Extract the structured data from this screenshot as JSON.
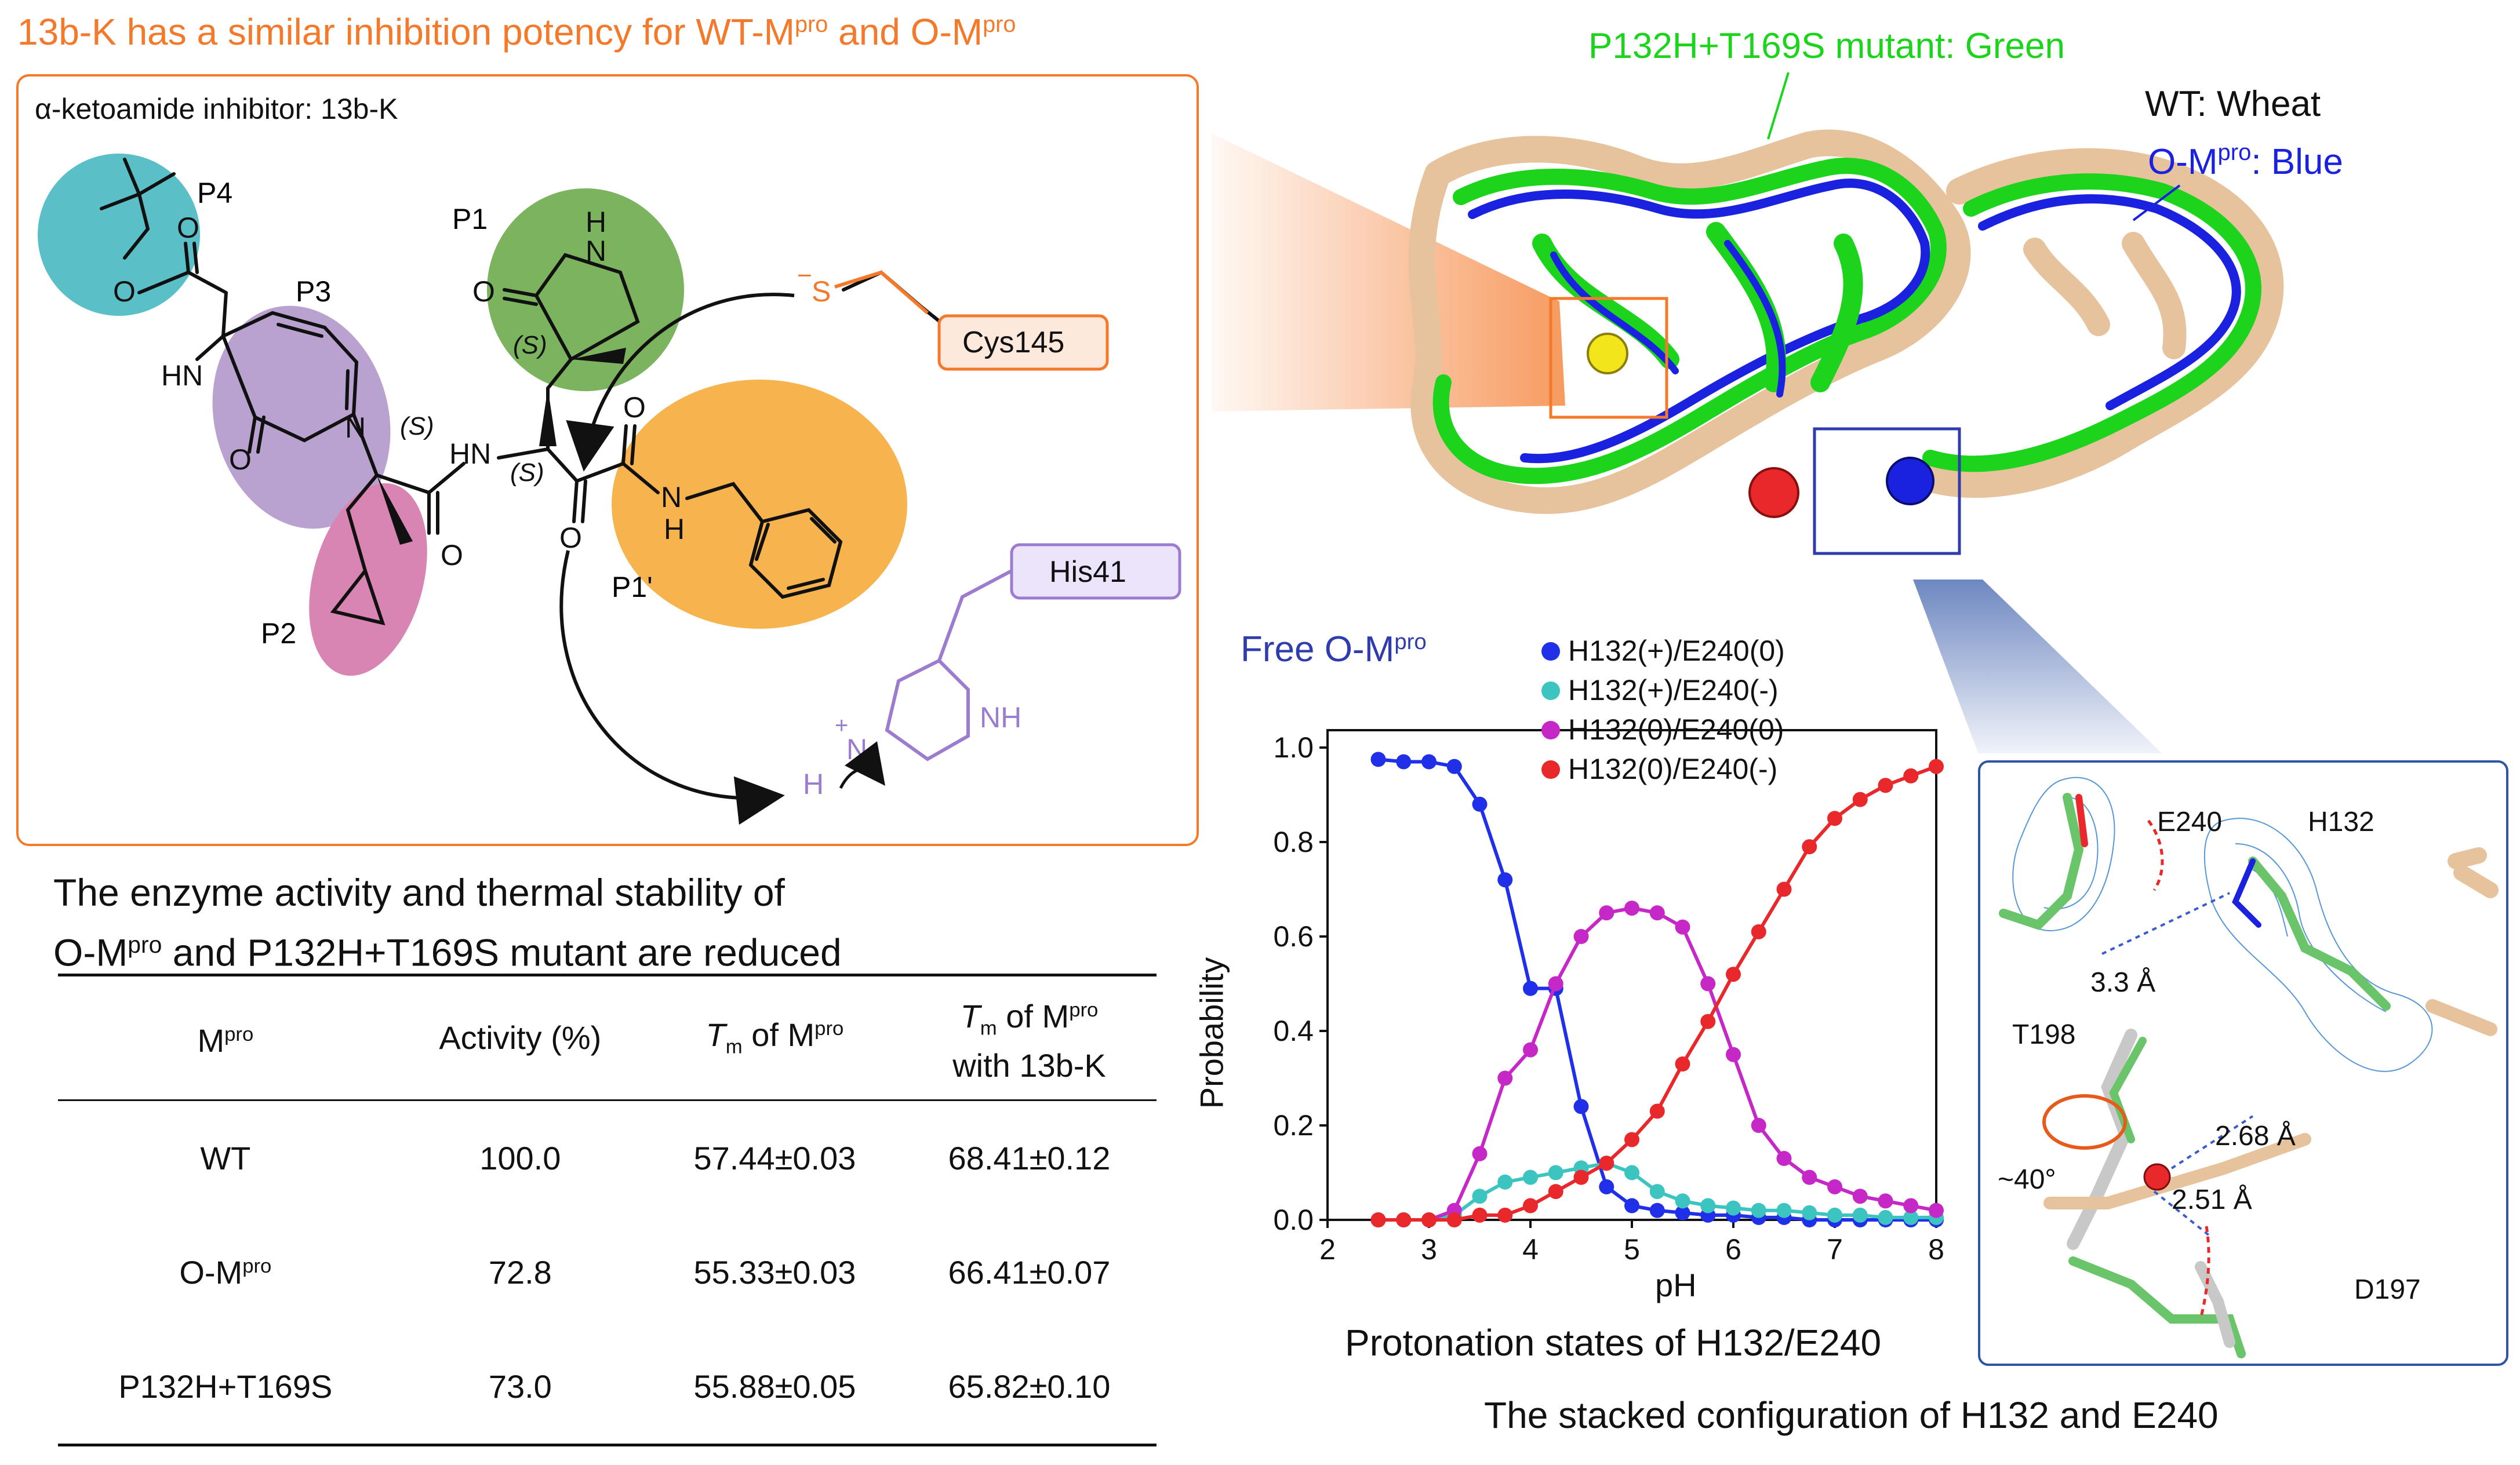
{
  "top_title": {
    "main": "13b-K has a similar inhibition potency for WT-M",
    "sup1": "pro",
    "mid": " and O-M",
    "sup2": "pro"
  },
  "chem_panel": {
    "label": "α-ketoamide inhibitor: 13b-K",
    "pocket_labels": {
      "p4": "P4",
      "p3": "P3",
      "p2": "P2",
      "p1": "P1",
      "p1prime": "P1'"
    },
    "stereo": {
      "s1": "(S)",
      "s2": "(S)",
      "s3": "(S)"
    },
    "atoms": {
      "o1": "O",
      "o2": "O",
      "o3": "O",
      "o4": "O",
      "o5": "O",
      "o6": "O",
      "nh_lactam": "N",
      "h_lactam": "H",
      "hn_p3": "HN",
      "n_pyr": "N",
      "hn_mid": "HN",
      "nh_amide": "N",
      "h_amide": "H",
      "s": "S",
      "s_charge": "−",
      "his_n": "N",
      "his_nh": "NH",
      "his_h": "H",
      "his_plus": "+"
    },
    "cys_label": "Cys145",
    "his_label": "His41",
    "colors": {
      "p4": "#5bbfc8",
      "p3": "#b9a2cf",
      "p2": "#d985b4",
      "p1": "#7cb35e",
      "p1prime": "#f7b44e",
      "cys": "#f4792a",
      "his": "#9b7ccf"
    }
  },
  "structure_panel": {
    "mutant_label": "P132H+T169S mutant: Green",
    "wt_label": "WT: Wheat",
    "ompro_label": {
      "pre": "O-M",
      "sup": "pro",
      "post": ": Blue"
    },
    "colors": {
      "wt": "#e6c39c",
      "mutant": "#1bd41b",
      "ompro": "#1a22e0"
    }
  },
  "table": {
    "title_line1": "The enzyme activity and thermal stability of",
    "title_line2": {
      "pre": "O-M",
      "sup": "pro",
      "post": " and P132H+T169S mutant are reduced"
    },
    "headers": {
      "col1": {
        "pre": "M",
        "sup": "pro"
      },
      "col2": "Activity (%)",
      "col3": {
        "tm": "T",
        "sub": "m",
        "post": " of M",
        "sup": "pro"
      },
      "col4": {
        "tm": "T",
        "sub": "m",
        "post": " of M",
        "sup": "pro",
        "line2": "with 13b-K"
      }
    },
    "rows": [
      {
        "name": "WT",
        "name_sup": "",
        "activity": "100.0",
        "tm": "57.44±0.03",
        "tm_13bk": "68.41±0.12"
      },
      {
        "name": "O-M",
        "name_sup": "pro",
        "activity": "72.8",
        "tm": "55.33±0.03",
        "tm_13bk": "66.41±0.07"
      },
      {
        "name": "P132H+T169S",
        "name_sup": "",
        "activity": "73.0",
        "tm": "55.88±0.05",
        "tm_13bk": "65.82±0.10"
      }
    ]
  },
  "chart_data": {
    "type": "line",
    "title": "Free O-Mpro",
    "title_parts": {
      "pre": "Free O-M",
      "sup": "pro"
    },
    "subtitle": "Protonation states of H132/E240",
    "xlabel": "pH",
    "ylabel": "Probability",
    "xlim": [
      2,
      8
    ],
    "ylim": [
      0,
      1
    ],
    "xticks": [
      "2",
      "3",
      "4",
      "5",
      "6",
      "7",
      "8"
    ],
    "yticks": [
      "0.0",
      "0.2",
      "0.4",
      "0.6",
      "0.8",
      "1.0"
    ],
    "legend_position": "top-right",
    "x": [
      2.5,
      2.75,
      3.0,
      3.25,
      3.5,
      3.75,
      4.0,
      4.25,
      4.5,
      4.75,
      5.0,
      5.25,
      5.5,
      5.75,
      6.0,
      6.25,
      6.5,
      6.75,
      7.0,
      7.25,
      7.5,
      7.75,
      8.0
    ],
    "series": [
      {
        "name": "H132(+)/E240(0)",
        "color": "#1f30e8",
        "values": [
          0.975,
          0.97,
          0.97,
          0.96,
          0.88,
          0.72,
          0.49,
          0.49,
          0.24,
          0.07,
          0.03,
          0.02,
          0.015,
          0.01,
          0.01,
          0.005,
          0.005,
          0.0,
          0.0,
          0.0,
          0.0,
          0.0,
          0.0
        ]
      },
      {
        "name": "H132(+)/E240(-)",
        "color": "#3cc4c0",
        "values": [
          0.0,
          0.0,
          0.0,
          0.01,
          0.05,
          0.08,
          0.09,
          0.1,
          0.11,
          0.12,
          0.1,
          0.06,
          0.04,
          0.03,
          0.025,
          0.02,
          0.02,
          0.015,
          0.01,
          0.01,
          0.005,
          0.005,
          0.005
        ]
      },
      {
        "name": "H132(0)/E240(0)",
        "color": "#c628c8",
        "values": [
          0.0,
          0.0,
          0.0,
          0.02,
          0.14,
          0.3,
          0.36,
          0.5,
          0.6,
          0.65,
          0.66,
          0.65,
          0.62,
          0.5,
          0.35,
          0.2,
          0.13,
          0.09,
          0.07,
          0.05,
          0.04,
          0.03,
          0.02
        ]
      },
      {
        "name": "H132(0)/E240(-)",
        "color": "#e8282a",
        "values": [
          0.0,
          0.0,
          0.0,
          0.0,
          0.01,
          0.01,
          0.03,
          0.06,
          0.09,
          0.12,
          0.17,
          0.23,
          0.33,
          0.42,
          0.52,
          0.61,
          0.7,
          0.79,
          0.85,
          0.89,
          0.92,
          0.94,
          0.96
        ]
      }
    ]
  },
  "density_panel": {
    "caption": "The stacked configuration of H132 and E240",
    "labels": {
      "e240": "E240",
      "h132": "H132",
      "d1": "3.3 Å",
      "t198": "T198",
      "d2": "2.68 Å",
      "angle": "~40°",
      "d3": "2.51 Å",
      "d197": "D197"
    }
  }
}
